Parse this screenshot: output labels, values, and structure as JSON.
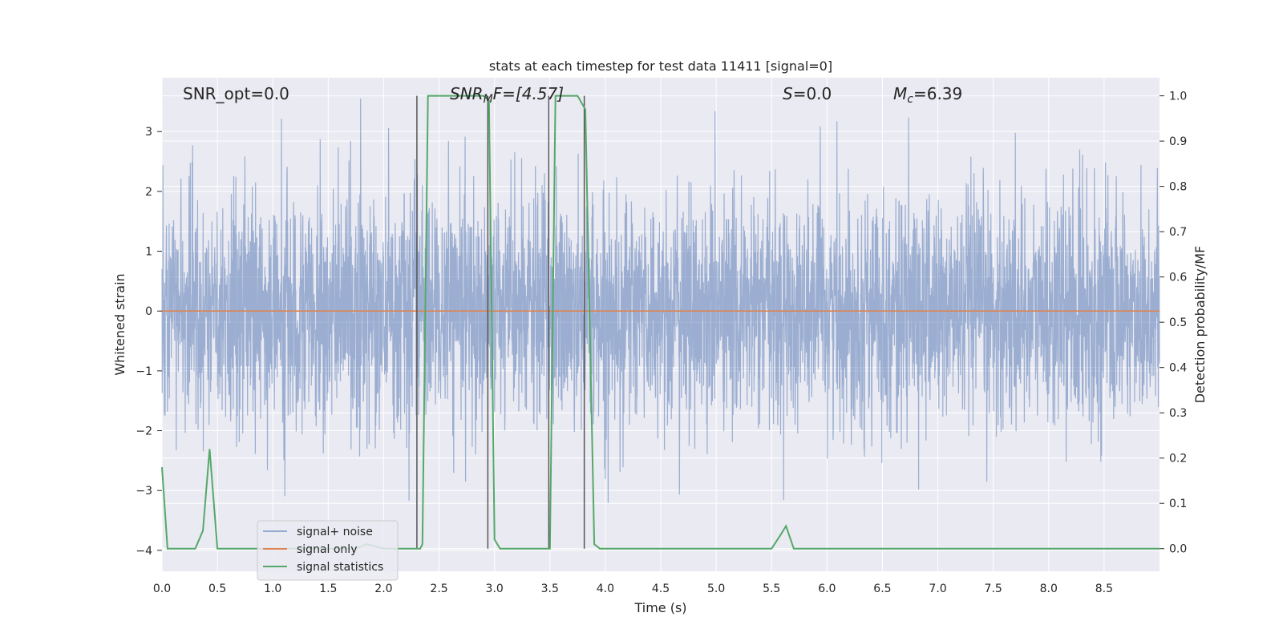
{
  "chart_data": {
    "type": "line",
    "title": "stats at each timestep for test data 11411 [signal=0]",
    "xlabel": "Time (s)",
    "ylabel": "Whitened strain",
    "ylabel_right": "Detection probability/MF",
    "xlim": [
      0.0,
      9.0
    ],
    "ylim": [
      -4.35,
      3.9
    ],
    "ylim_right": [
      -0.05,
      1.04
    ],
    "xticks": [
      "0.0",
      "0.5",
      "1.0",
      "1.5",
      "2.0",
      "2.5",
      "3.0",
      "3.5",
      "4.0",
      "4.5",
      "5.0",
      "5.5",
      "6.0",
      "6.5",
      "7.0",
      "7.5",
      "8.0",
      "8.5"
    ],
    "yticks": [
      "3",
      "2",
      "1",
      "0",
      "−1",
      "−2",
      "−3",
      "−4"
    ],
    "yticks_right": [
      "1.0",
      "0.9",
      "0.8",
      "0.7",
      "0.6",
      "0.5",
      "0.4",
      "0.3",
      "0.2",
      "0.1",
      "0.0"
    ],
    "grid": true,
    "legend_position": "lower-left",
    "annotations": {
      "snr_opt": "SNR_opt=0.0",
      "snr_mf_main": "SNR",
      "snr_mf_sub": "M",
      "snr_mf_rest": "F=[4.57]",
      "s_main": "S",
      "s_rest": "=0.0",
      "mc_main": "M",
      "mc_sub": "c",
      "mc_rest": "=6.39"
    },
    "series": [
      {
        "name": "signal+ noise",
        "color": "#4c72b0",
        "description_values": "random noise, approx range -4 to 3.5",
        "noise_sigma": 0.95,
        "noise_seed": 11411
      },
      {
        "name": "signal only",
        "color": "#dd8452",
        "x": [
          0.0,
          9.0
        ],
        "y": [
          0.0,
          0.0
        ]
      },
      {
        "name": "signal statistics",
        "color": "#55a868",
        "axis": "right",
        "x": [
          0.0,
          0.05,
          0.1,
          0.2,
          0.3,
          0.37,
          0.43,
          0.5,
          0.6,
          0.8,
          1.0,
          1.5,
          1.75,
          1.85,
          2.0,
          2.2,
          2.27,
          2.33,
          2.35,
          2.4,
          2.5,
          2.8,
          2.9,
          2.95,
          3.0,
          3.05,
          3.1,
          3.3,
          3.5,
          3.55,
          3.6,
          3.75,
          3.82,
          3.9,
          3.95,
          4.0,
          4.5,
          5.0,
          5.5,
          5.58,
          5.63,
          5.7,
          5.78,
          5.85,
          6.0,
          7.0,
          8.0,
          9.0
        ],
        "y": [
          0.18,
          0.0,
          0.0,
          0.0,
          0.0,
          0.04,
          0.22,
          0.0,
          0.0,
          0.0,
          0.0,
          0.0,
          0.0,
          0.01,
          0.0,
          0.0,
          0.0,
          0.0,
          0.01,
          1.0,
          1.0,
          1.0,
          1.0,
          0.99,
          0.02,
          0.0,
          0.0,
          0.0,
          0.0,
          1.0,
          1.0,
          1.0,
          0.97,
          0.01,
          0.0,
          0.0,
          0.0,
          0.0,
          0.0,
          0.03,
          0.05,
          0.0,
          0.0,
          0.0,
          0.0,
          0.0,
          0.0,
          0.0
        ]
      }
    ],
    "vlines": [
      {
        "x": 2.3,
        "y_top": 1.0,
        "color": "#555555"
      },
      {
        "x": 2.94,
        "y_top": 1.0,
        "color": "#555555"
      },
      {
        "x": 3.49,
        "y_top": 1.0,
        "color": "#555555"
      },
      {
        "x": 3.81,
        "y_top": 1.0,
        "color": "#555555"
      }
    ],
    "colors": {
      "background": "#eaeaf2",
      "grid": "#ffffff"
    }
  }
}
